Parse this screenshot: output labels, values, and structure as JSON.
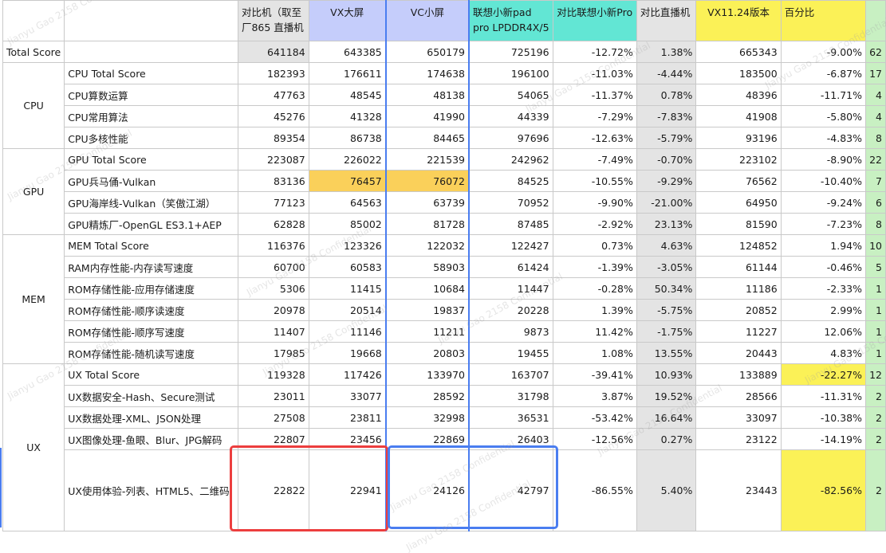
{
  "header": {
    "c0": "",
    "c1": "",
    "c2": "对比机（取至厂865 直播机",
    "c3": "VX大屏",
    "c4": "VC小屏",
    "c5": "联想小新pad pro LPDDR4X/5",
    "c6": "对比联想小新Pro",
    "c7": "对比直播机",
    "c8": "VX11.24版本",
    "c9": "百分比",
    "c10": ""
  },
  "rows": [
    {
      "cat": "",
      "sub": "Total Score",
      "v": [
        "641184",
        "643385",
        "650179",
        "725196",
        "-12.72%",
        "1.38%",
        "665343",
        "-9.00%",
        "62"
      ]
    },
    {
      "cat": "CPU",
      "sub": "CPU Total Score",
      "v": [
        "182393",
        "176611",
        "174638",
        "196100",
        "-11.03%",
        "-4.44%",
        "183500",
        "-6.87%",
        "17"
      ]
    },
    {
      "cat": "",
      "sub": "CPU算数运算",
      "v": [
        "47763",
        "48545",
        "48138",
        "54065",
        "-11.37%",
        "0.78%",
        "48396",
        "-11.71%",
        "4"
      ]
    },
    {
      "cat": "",
      "sub": "CPU常用算法",
      "v": [
        "45276",
        "41328",
        "41990",
        "44339",
        "-7.29%",
        "-7.83%",
        "41908",
        "-5.80%",
        "4"
      ]
    },
    {
      "cat": "",
      "sub": "CPU多核性能",
      "v": [
        "89354",
        "86738",
        "84465",
        "97696",
        "-12.63%",
        "-5.79%",
        "93196",
        "-4.83%",
        "8"
      ]
    },
    {
      "cat": "GPU",
      "sub": "GPU Total Score",
      "v": [
        "223087",
        "226022",
        "221539",
        "242962",
        "-7.49%",
        "-0.70%",
        "223102",
        "-8.90%",
        "22"
      ]
    },
    {
      "cat": "",
      "sub": "GPU兵马俑-Vulkan",
      "v": [
        "83136",
        "76457",
        "76072",
        "84525",
        "-10.55%",
        "-9.29%",
        "76562",
        "-10.40%",
        "7"
      ]
    },
    {
      "cat": "",
      "sub": "GPU海岸线-Vulkan（笑傲江湖）",
      "v": [
        "77123",
        "64563",
        "63739",
        "70952",
        "-9.90%",
        "-21.00%",
        "64950",
        "-9.24%",
        "6"
      ]
    },
    {
      "cat": "",
      "sub": "GPU精炼厂-OpenGL ES3.1+AEP",
      "v": [
        "62828",
        "85002",
        "81728",
        "87485",
        "-2.92%",
        "23.13%",
        "81590",
        "-7.23%",
        "8"
      ]
    },
    {
      "cat": "MEM",
      "sub": "MEM Total Score",
      "v": [
        "116376",
        "123326",
        "122032",
        "122427",
        "0.73%",
        "4.63%",
        "124852",
        "1.94%",
        "10"
      ]
    },
    {
      "cat": "",
      "sub": "RAM内存性能-内存读写速度",
      "v": [
        "60700",
        "60583",
        "58903",
        "61424",
        "-1.39%",
        "-3.05%",
        "61144",
        "-0.46%",
        "5"
      ]
    },
    {
      "cat": "",
      "sub": "ROM存储性能-应用存储速度",
      "v": [
        "5306",
        "11415",
        "10684",
        "11447",
        "-0.28%",
        "50.34%",
        "11186",
        "-2.33%",
        "1"
      ]
    },
    {
      "cat": "",
      "sub": "ROM存储性能-顺序读速度",
      "v": [
        "20978",
        "20514",
        "19837",
        "20228",
        "1.39%",
        "-5.75%",
        "20852",
        "2.99%",
        "1"
      ]
    },
    {
      "cat": "",
      "sub": "ROM存储性能-顺序写速度",
      "v": [
        "11407",
        "11146",
        "11211",
        "9873",
        "11.42%",
        "-1.75%",
        "11227",
        "12.06%",
        "1"
      ]
    },
    {
      "cat": "",
      "sub": "ROM存储性能-随机读写速度",
      "v": [
        "17985",
        "19668",
        "20803",
        "19455",
        "1.08%",
        "13.55%",
        "20443",
        "4.83%",
        "1"
      ]
    },
    {
      "cat": "UX",
      "sub": "UX Total Score",
      "v": [
        "119328",
        "117426",
        "133970",
        "163707",
        "-39.41%",
        "10.93%",
        "133889",
        "-22.27%",
        "12"
      ]
    },
    {
      "cat": "",
      "sub": "UX数据安全-Hash、Secure测试",
      "v": [
        "23011",
        "33077",
        "28592",
        "31798",
        "3.87%",
        "19.52%",
        "28566",
        "-11.31%",
        "2"
      ]
    },
    {
      "cat": "",
      "sub": "UX数据处理-XML、JSON处理",
      "v": [
        "27508",
        "23811",
        "32998",
        "36531",
        "-53.42%",
        "16.64%",
        "33097",
        "-10.38%",
        "2"
      ]
    },
    {
      "cat": "",
      "sub": "UX图像处理-鱼眼、Blur、JPG解码",
      "v": [
        "22807",
        "23456",
        "22869",
        "26403",
        "-12.56%",
        "0.27%",
        "23122",
        "-14.19%",
        "2"
      ]
    },
    {
      "cat": "",
      "sub": "UX使用体验-列表、HTML5、二维码",
      "v": [
        "22822",
        "22941",
        "24126",
        "42797",
        "-86.55%",
        "5.40%",
        "23443",
        "-82.56%",
        "2"
      ]
    }
  ],
  "watermark": "Jianyu Gao 2158 Confidential",
  "colors": {
    "gray": "#e4e4e4",
    "blue": "#c5cdfb",
    "cyan": "#62e6d4",
    "yellow": "#fbf157",
    "orange": "#fad05a",
    "green": "#c8f0c2",
    "red_box": "#ec3e3e",
    "blue_box": "#4a7df0"
  }
}
